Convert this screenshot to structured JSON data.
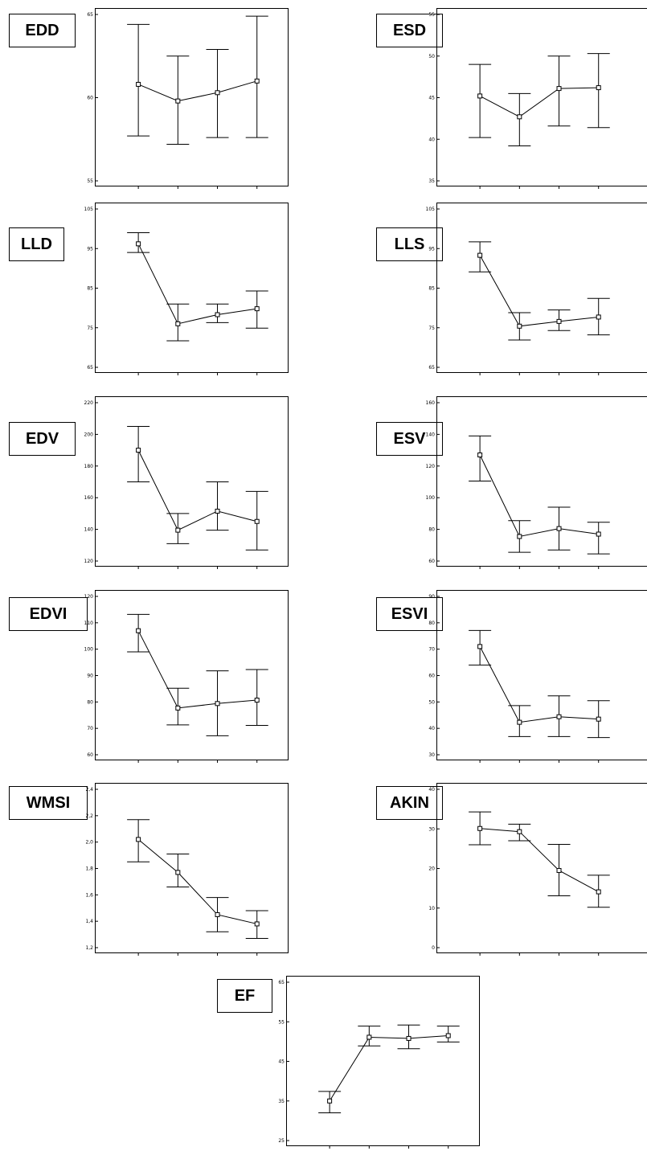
{
  "chart_data": [
    {
      "type": "line",
      "label": "EDD",
      "y_ticks": [
        "55",
        "60",
        "65"
      ],
      "ylim": [
        55,
        65
      ],
      "values": [
        60.8,
        59.8,
        60.3,
        61.0
      ],
      "lower": [
        57.7,
        57.2,
        57.6,
        57.6
      ],
      "upper": [
        64.4,
        62.5,
        62.9,
        64.9
      ]
    },
    {
      "type": "line",
      "label": "ESD",
      "y_ticks": [
        "35",
        "40",
        "45",
        "50",
        "55"
      ],
      "ylim": [
        35,
        55
      ],
      "values": [
        45.2,
        42.7,
        46.1,
        46.2
      ],
      "lower": [
        40.2,
        39.2,
        41.6,
        41.4
      ],
      "upper": [
        49.0,
        45.5,
        50.0,
        50.3
      ]
    },
    {
      "type": "line",
      "label": "LLD",
      "y_ticks": [
        "65",
        "75",
        "85",
        "95",
        "105"
      ],
      "ylim": [
        65,
        105
      ],
      "values": [
        96.2,
        76.0,
        78.3,
        79.8
      ],
      "lower": [
        94.0,
        71.7,
        76.3,
        74.9
      ],
      "upper": [
        99.0,
        81.0,
        81.0,
        84.3
      ]
    },
    {
      "type": "line",
      "label": "LLS",
      "y_ticks": [
        "65",
        "75",
        "85",
        "95",
        "105"
      ],
      "ylim": [
        65,
        105
      ],
      "values": [
        93.3,
        75.4,
        76.6,
        77.7
      ],
      "lower": [
        89.1,
        71.9,
        74.3,
        73.2
      ],
      "upper": [
        96.7,
        78.8,
        79.5,
        82.4
      ]
    },
    {
      "type": "line",
      "label": "EDV",
      "y_ticks": [
        "120",
        "140",
        "160",
        "180",
        "200",
        "220"
      ],
      "ylim": [
        120,
        220
      ],
      "values": [
        190,
        139.5,
        151.5,
        145
      ],
      "lower": [
        170,
        131,
        139.5,
        127
      ],
      "upper": [
        205,
        150,
        170,
        164
      ]
    },
    {
      "type": "line",
      "label": "ESV",
      "y_ticks": [
        "60",
        "80",
        "100",
        "120",
        "140",
        "160"
      ],
      "ylim": [
        60,
        160
      ],
      "values": [
        127,
        75.5,
        80.5,
        77
      ],
      "lower": [
        110.5,
        65.5,
        67,
        64.5
      ],
      "upper": [
        139,
        85.5,
        94,
        84.5
      ]
    },
    {
      "type": "line",
      "label": "EDVI",
      "y_ticks": [
        "60",
        "70",
        "80",
        "90",
        "100",
        "110",
        "120"
      ],
      "ylim": [
        60,
        120
      ],
      "values": [
        107,
        77.7,
        79.4,
        80.7
      ],
      "lower": [
        99,
        71.3,
        67.2,
        71.1
      ],
      "upper": [
        113.2,
        85.2,
        91.8,
        92.3
      ]
    },
    {
      "type": "line",
      "label": "ESVI",
      "y_ticks": [
        "30",
        "40",
        "50",
        "60",
        "70",
        "80",
        "90"
      ],
      "ylim": [
        30,
        90
      ],
      "values": [
        71,
        42.3,
        44.4,
        43.5
      ],
      "lower": [
        64,
        36.9,
        36.9,
        36.5
      ],
      "upper": [
        77.1,
        48.6,
        52.3,
        50.5
      ]
    },
    {
      "type": "line",
      "label": "WMSI",
      "y_ticks": [
        "1,2",
        "1,4",
        "1,6",
        "1,8",
        "2,0",
        "2,2",
        "2,4"
      ],
      "ylim": [
        1.2,
        2.4
      ],
      "values": [
        2.02,
        1.77,
        1.45,
        1.38
      ],
      "lower": [
        1.85,
        1.66,
        1.32,
        1.27
      ],
      "upper": [
        2.17,
        1.91,
        1.58,
        1.48
      ]
    },
    {
      "type": "line",
      "label": "AKIN",
      "y_ticks": [
        "0",
        "10",
        "20",
        "30",
        "40"
      ],
      "ylim": [
        0,
        40
      ],
      "values": [
        30.1,
        29.3,
        19.5,
        14.1
      ],
      "lower": [
        26.0,
        27.0,
        13.1,
        10.2
      ],
      "upper": [
        34.3,
        31.2,
        26.1,
        18.3
      ]
    },
    {
      "type": "line",
      "label": "EF",
      "y_ticks": [
        "25",
        "35",
        "45",
        "55",
        "65"
      ],
      "ylim": [
        25,
        65
      ],
      "values": [
        35,
        51.1,
        50.8,
        51.5
      ],
      "lower": [
        32,
        48.9,
        48.2,
        49.9
      ],
      "upper": [
        37.4,
        53.9,
        54.2,
        53.9
      ]
    }
  ]
}
